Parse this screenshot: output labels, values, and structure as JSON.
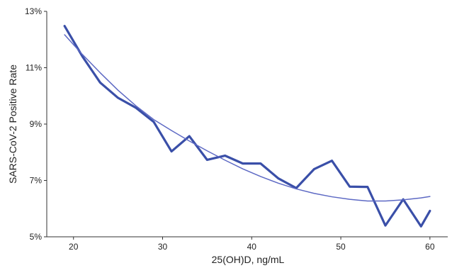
{
  "chart_data": {
    "type": "line",
    "xlabel": "25(OH)D, ng/mL",
    "ylabel": "SARS-CoV-2 Positive Rate",
    "xlim": [
      17,
      62
    ],
    "ylim": [
      5,
      13
    ],
    "x_ticks": [
      20,
      30,
      40,
      50,
      60
    ],
    "x_tick_labels": [
      "20",
      "30",
      "40",
      "50",
      "60"
    ],
    "y_ticks": [
      5,
      7,
      9,
      11,
      13
    ],
    "y_tick_labels": [
      "5%",
      "7%",
      "9%",
      "11%",
      "13%"
    ],
    "grid": false,
    "legend": "none",
    "series": [
      {
        "x": [
          19,
          21,
          23,
          25,
          27,
          29,
          31,
          33,
          35,
          37,
          39,
          41,
          43,
          45,
          47,
          49,
          51,
          53,
          55,
          57,
          59,
          60
        ],
        "y": [
          12.48,
          11.4,
          10.47,
          9.93,
          9.58,
          9.08,
          8.03,
          8.57,
          7.73,
          7.88,
          7.6,
          7.6,
          7.07,
          6.73,
          7.4,
          7.7,
          6.78,
          6.77,
          5.4,
          6.33,
          5.37,
          5.92
        ],
        "color": "#3a4fa8"
      },
      {
        "x": [
          19,
          21,
          23,
          25,
          27,
          29,
          31,
          33,
          35,
          37,
          39,
          41,
          43,
          45,
          47,
          49,
          51,
          53,
          55,
          57,
          59,
          60
        ],
        "y": [
          12.17,
          11.47,
          10.82,
          10.2,
          9.65,
          9.16,
          8.77,
          8.4,
          8.05,
          7.72,
          7.41,
          7.14,
          6.9,
          6.7,
          6.54,
          6.42,
          6.33,
          6.27,
          6.27,
          6.31,
          6.38,
          6.43
        ],
        "color": "#5d69c4"
      }
    ]
  }
}
